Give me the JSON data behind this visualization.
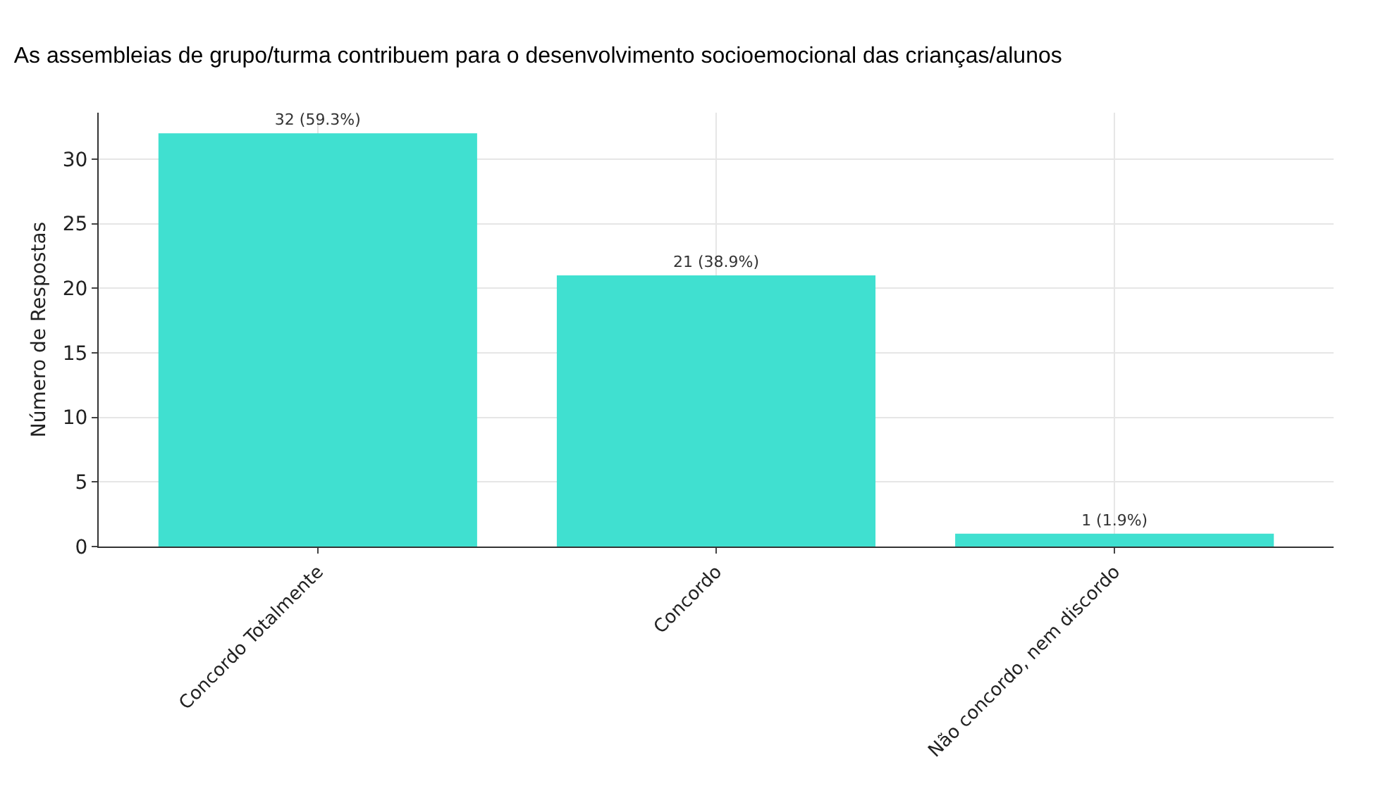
{
  "chart_data": {
    "type": "bar",
    "title": "As assembleias de grupo/turma contribuem para o desenvolvimento socioemocional das crianças/alunos",
    "ylabel": "Número de Respostas",
    "categories": [
      "Concordo Totalmente",
      "Concordo",
      "Não concordo, nem discordo"
    ],
    "values": [
      32,
      21,
      1
    ],
    "color": "#40e0d0",
    "value_labels": [
      "32 (59.3%)",
      "21 (38.9%)",
      "1 (1.9%)"
    ],
    "ylim": [
      0,
      33.6
    ],
    "yticks": [
      0,
      5,
      10,
      15,
      20,
      25,
      30
    ],
    "grid": true
  }
}
